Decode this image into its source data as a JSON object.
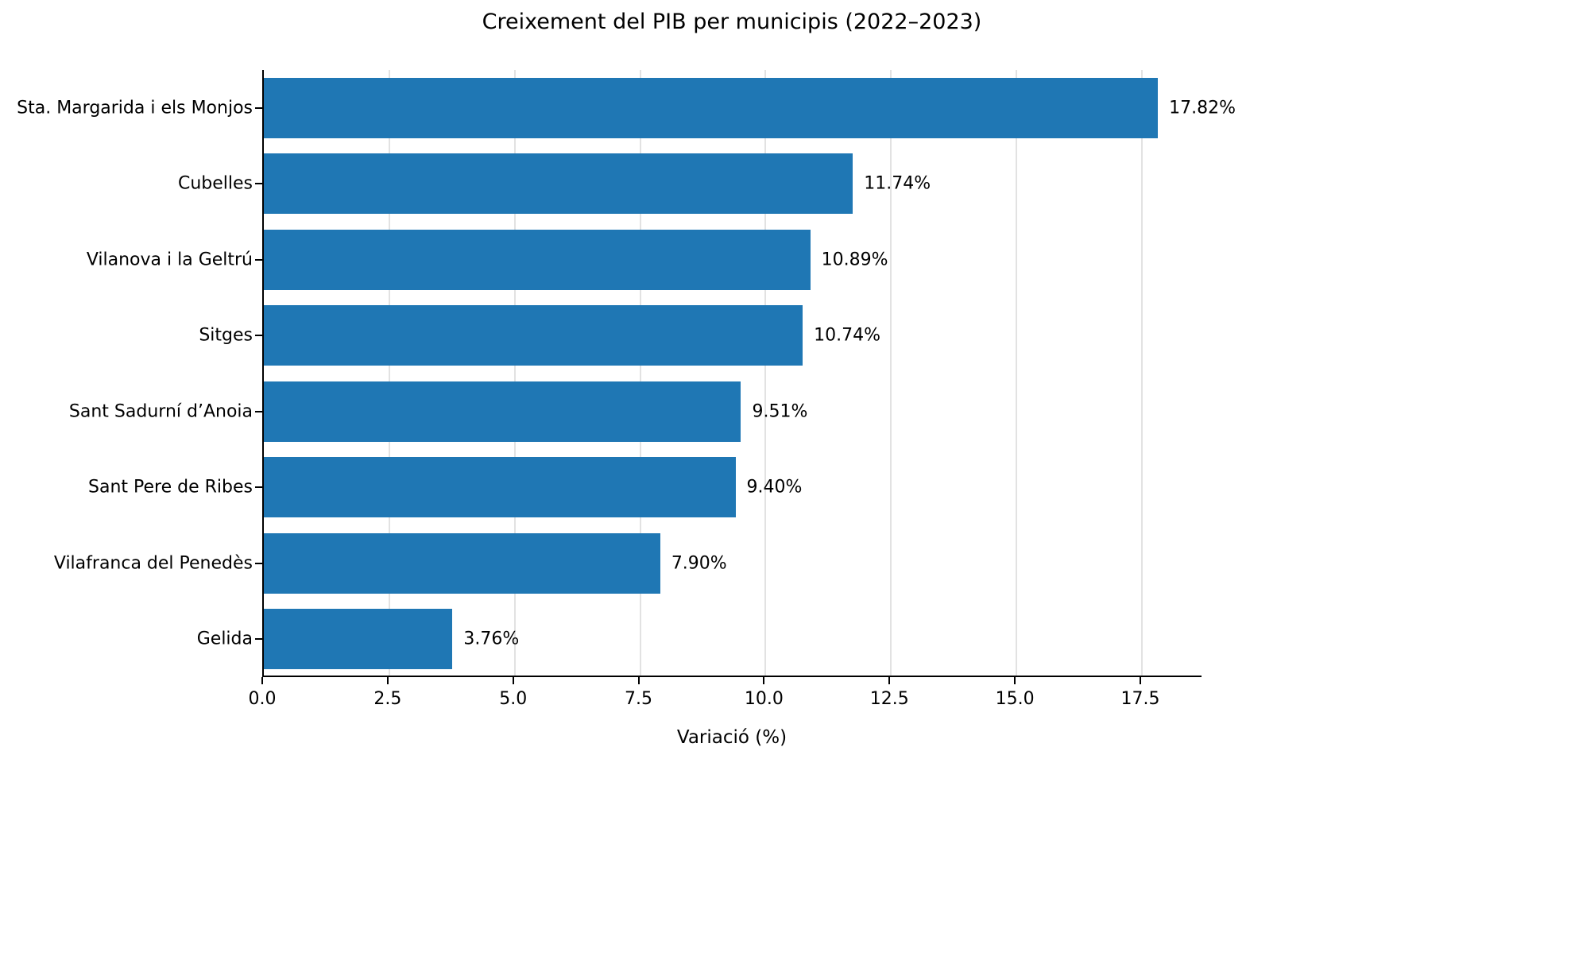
{
  "chart_data": {
    "type": "bar",
    "orientation": "horizontal",
    "title": "Creixement del PIB per municipis (2022–2023)",
    "xlabel": "Variació (%)",
    "ylabel": "",
    "categories": [
      "Sta. Margarida i els Monjos",
      "Cubelles",
      "Vilanova i la Geltrú",
      "Sitges",
      "Sant Sadurní d’Anoia",
      "Sant Pere de Ribes",
      "Vilafranca del Penedès",
      "Gelida"
    ],
    "values": [
      17.82,
      11.74,
      10.89,
      10.74,
      9.51,
      9.4,
      7.9,
      3.76
    ],
    "value_labels": [
      "17.82%",
      "11.74%",
      "10.89%",
      "10.74%",
      "9.51%",
      "9.40%",
      "7.90%",
      "3.76%"
    ],
    "xlim": [
      0,
      18.72
    ],
    "xticks": [
      0.0,
      2.5,
      5.0,
      7.5,
      10.0,
      12.5,
      15.0,
      17.5
    ],
    "xtick_labels": [
      "0.0",
      "2.5",
      "5.0",
      "7.5",
      "10.0",
      "12.5",
      "15.0",
      "17.5"
    ],
    "grid": true,
    "legend": "none",
    "bar_color": "#1f77b4"
  }
}
